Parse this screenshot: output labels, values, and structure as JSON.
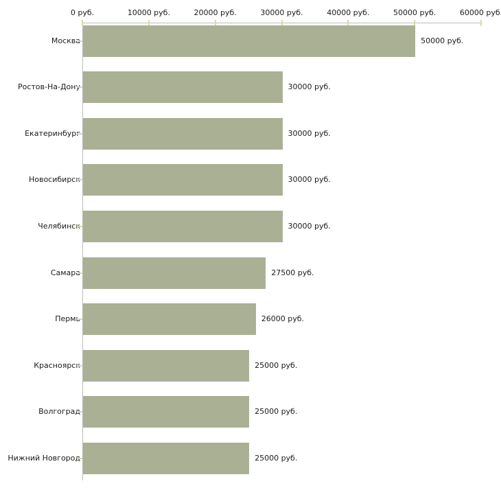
{
  "chart_data": {
    "type": "bar",
    "orientation": "horizontal",
    "title": "",
    "xlabel": "",
    "ylabel": "",
    "categories": [
      "Москва",
      "Ростов-На-Дону",
      "Екатеринбург",
      "Новосибирск",
      "Челябинск",
      "Самара",
      "Пермь",
      "Красноярск",
      "Волгоград",
      "Нижний Новгород"
    ],
    "values": [
      50000,
      30000,
      30000,
      30000,
      30000,
      27500,
      26000,
      25000,
      25000,
      25000
    ],
    "value_labels": [
      "50000 руб.",
      "30000 руб.",
      "30000 руб.",
      "30000 руб.",
      "30000 руб.",
      "27500 руб.",
      "26000 руб.",
      "25000 руб.",
      "25000 руб.",
      "25000 руб."
    ],
    "xlim": [
      0,
      60000
    ],
    "x_ticks": [
      0,
      10000,
      20000,
      30000,
      40000,
      50000,
      60000
    ],
    "x_tick_labels": [
      "0 руб.",
      "10000 руб.",
      "20000 руб.",
      "30000 руб.",
      "40000 руб.",
      "50000 руб.",
      "60000 руб."
    ],
    "grid": false,
    "legend": null,
    "colors": {
      "bar": "#aab094",
      "axis_line": "#bcbcbc",
      "tick_mark": "#d8d8ab",
      "text": "#1a1a1a",
      "background": "#ffffff"
    }
  }
}
